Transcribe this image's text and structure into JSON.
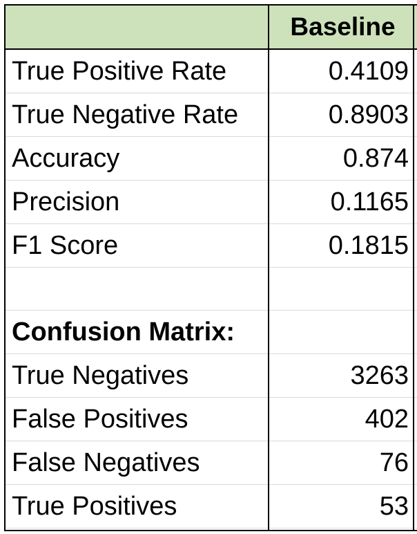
{
  "header": {
    "col1": "",
    "col2": "Baseline"
  },
  "rows": [
    {
      "label": "True Positive Rate",
      "value": "0.4109"
    },
    {
      "label": "True Negative Rate",
      "value": "0.8903"
    },
    {
      "label": "Accuracy",
      "value": "0.874"
    },
    {
      "label": "Precision",
      "value": "0.1165"
    },
    {
      "label": "F1 Score",
      "value": "0.1815"
    },
    {
      "label": "",
      "value": ""
    },
    {
      "label": "Confusion Matrix:",
      "value": ""
    },
    {
      "label": "True Negatives",
      "value": "3263"
    },
    {
      "label": "False Positives",
      "value": "402"
    },
    {
      "label": "False Negatives",
      "value": "76"
    },
    {
      "label": "True Positives",
      "value": "53"
    }
  ],
  "colors": {
    "header_fill": "#cde2bb",
    "border": "#000000",
    "gridline": "#d9d9d9"
  }
}
